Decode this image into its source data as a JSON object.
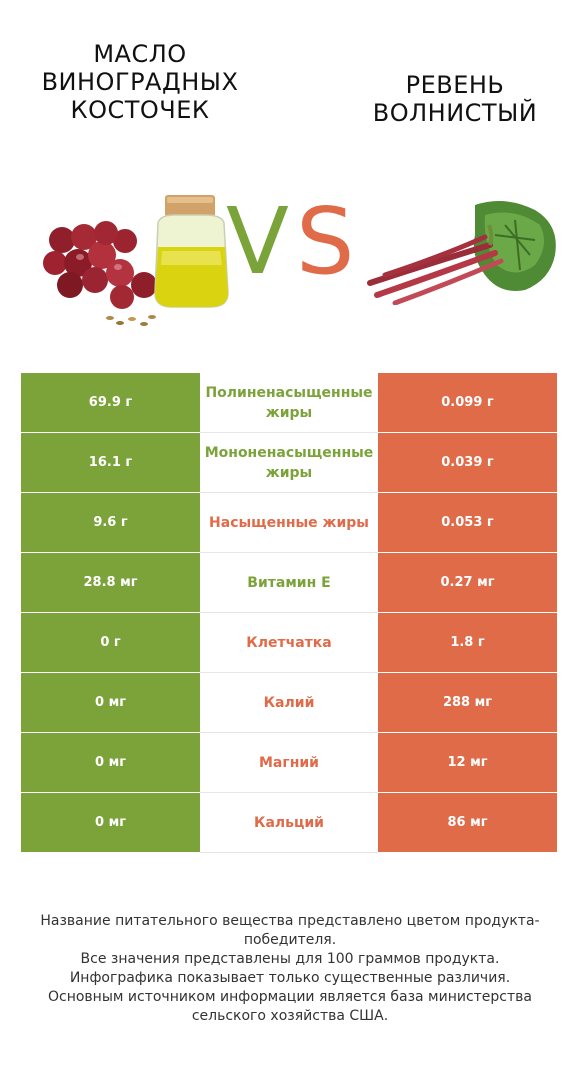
{
  "header": {
    "left_title": "Масло виноградных косточек",
    "right_title": "Ревень волнистый",
    "vs_v": "V",
    "vs_s": "S"
  },
  "colors": {
    "left": "#7ca33a",
    "right": "#e06b49"
  },
  "rows": [
    {
      "left": "69.9 г",
      "name": "Полиненасыщенные жиры",
      "right": "0.099 г",
      "winner": "left"
    },
    {
      "left": "16.1 г",
      "name": "Мононенасыщенные жиры",
      "right": "0.039 г",
      "winner": "left"
    },
    {
      "left": "9.6 г",
      "name": "Насыщенные жиры",
      "right": "0.053 г",
      "winner": "right"
    },
    {
      "left": "28.8 мг",
      "name": "Витамин E",
      "right": "0.27 мг",
      "winner": "left"
    },
    {
      "left": "0 г",
      "name": "Клетчатка",
      "right": "1.8 г",
      "winner": "right"
    },
    {
      "left": "0 мг",
      "name": "Калий",
      "right": "288 мг",
      "winner": "right"
    },
    {
      "left": "0 мг",
      "name": "Магний",
      "right": "12 мг",
      "winner": "right"
    },
    {
      "left": "0 мг",
      "name": "Кальций",
      "right": "86 мг",
      "winner": "right"
    }
  ],
  "footer": [
    "Название питательного вещества представлено цветом продукта-победителя.",
    "Все значения представлены для 100 граммов продукта.",
    "Инфографика показывает только существенные различия.",
    "Основным источником информации является база министерства сельского хозяйства США."
  ]
}
